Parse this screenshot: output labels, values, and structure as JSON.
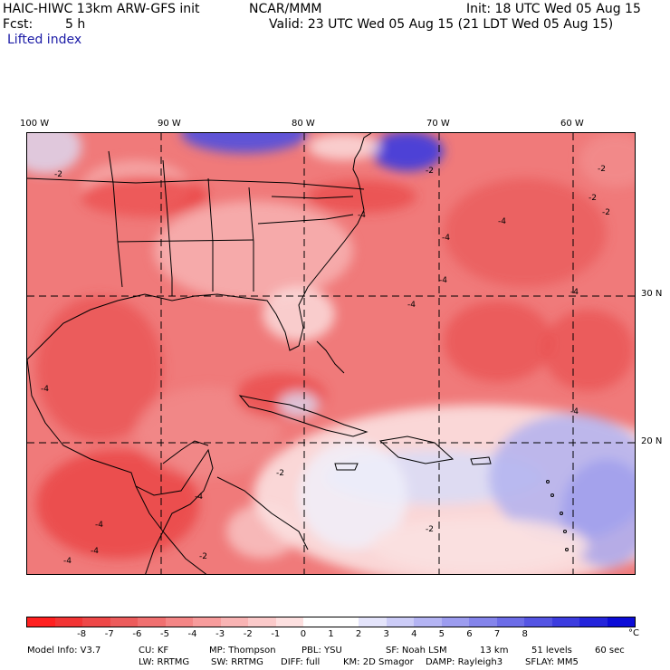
{
  "header": {
    "model_title": "HAIC-HIWC 13km ARW-GFS init",
    "org": "NCAR/MMM",
    "init": "Init: 18 UTC Wed 05 Aug 15",
    "fcst_label": "Fcst:",
    "fcst_value": "5 h",
    "valid": "Valid: 23 UTC Wed 05 Aug 15 (21 LDT Wed 05 Aug 15)",
    "field_name": "Lifted index"
  },
  "map": {
    "longitude_labels": [
      "100 W",
      "90 W",
      "80 W",
      "70 W",
      "60 W"
    ],
    "latitude_labels": [
      "30 N",
      "20 N"
    ],
    "contour_labels": [
      "-2",
      "-2",
      "-2",
      "-2",
      "-4",
      "-4",
      "-4",
      "-4",
      "-4",
      "-4",
      "-4",
      "-2",
      "-2",
      "-4",
      "-4",
      "-4",
      "-4",
      "-4",
      "-2",
      "-2"
    ],
    "colors": {
      "deep_red": "#e83c3c",
      "mid_red": "#f07a7a",
      "light_red": "#f7b3b3",
      "pale": "#fbe1e1",
      "pale_blue": "#dcdcf5",
      "light_blue": "#b3b3f0",
      "mid_blue": "#7070e6",
      "deep_blue": "#2a2ae0"
    }
  },
  "colorbar": {
    "colors": [
      "#ff2020",
      "#f23434",
      "#ee4848",
      "#ec5c5c",
      "#f07070",
      "#f48686",
      "#f79c9c",
      "#f9b4b4",
      "#fbcaca",
      "#fde0e0",
      "#ffffff",
      "#ffffff",
      "#e4e4fb",
      "#ccccf7",
      "#b4b4f3",
      "#9c9cef",
      "#8484eb",
      "#6c6ce7",
      "#5454e3",
      "#3c3cdf",
      "#2424db",
      "#0c0cd7"
    ],
    "tick_labels": [
      "-8",
      "-7",
      "-6",
      "-5",
      "-4",
      "-3",
      "-2",
      "-1",
      "0",
      "1",
      "2",
      "3",
      "4",
      "5",
      "6",
      "7",
      "8"
    ],
    "unit": "°C"
  },
  "footer": {
    "line1": [
      "Model Info: V3.7",
      "CU: KF",
      "MP: Thompson",
      "PBL: YSU",
      "SF: Noah LSM",
      "13 km",
      "51 levels",
      "60 sec"
    ],
    "line2": [
      "LW: RRTMG",
      "SW: RRTMG",
      "DIFF: full",
      "KM: 2D Smagor",
      "DAMP: Rayleigh3",
      "SFLAY: MM5"
    ]
  }
}
